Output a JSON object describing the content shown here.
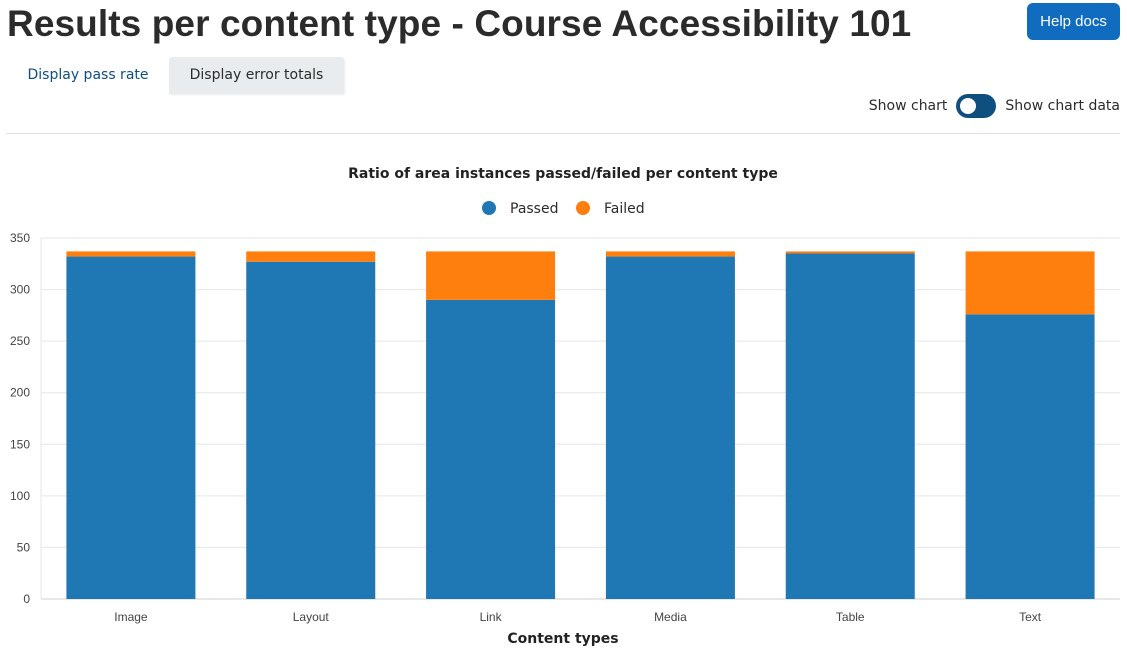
{
  "header": {
    "title": "Results per content type - Course Accessibility 101",
    "help_label": "Help docs"
  },
  "tabs": [
    {
      "label": "Display pass rate",
      "active": false
    },
    {
      "label": "Display error totals",
      "active": true
    }
  ],
  "toggle": {
    "left_label": "Show chart",
    "right_label": "Show chart data",
    "state": "on"
  },
  "colors": {
    "accent": "#0f6cbf",
    "toggle": "#0f4f80",
    "passed": "#1f77b4",
    "failed": "#ff7f0e"
  },
  "chart_data": {
    "type": "bar",
    "stacked": true,
    "title": "Ratio of area instances passed/failed per content type",
    "xlabel": "Content types",
    "ylabel": "",
    "categories": [
      "Image",
      "Layout",
      "Link",
      "Media",
      "Table",
      "Text"
    ],
    "series": [
      {
        "name": "Passed",
        "color": "#1f77b4",
        "values": [
          332,
          327,
          290,
          332,
          335,
          276
        ]
      },
      {
        "name": "Failed",
        "color": "#ff7f0e",
        "values": [
          5,
          10,
          47,
          5,
          2,
          61
        ]
      }
    ],
    "ylim": [
      0,
      350
    ],
    "yticks": [
      0,
      50,
      100,
      150,
      200,
      250,
      300,
      350
    ],
    "grid": true,
    "legend": "top-center"
  }
}
